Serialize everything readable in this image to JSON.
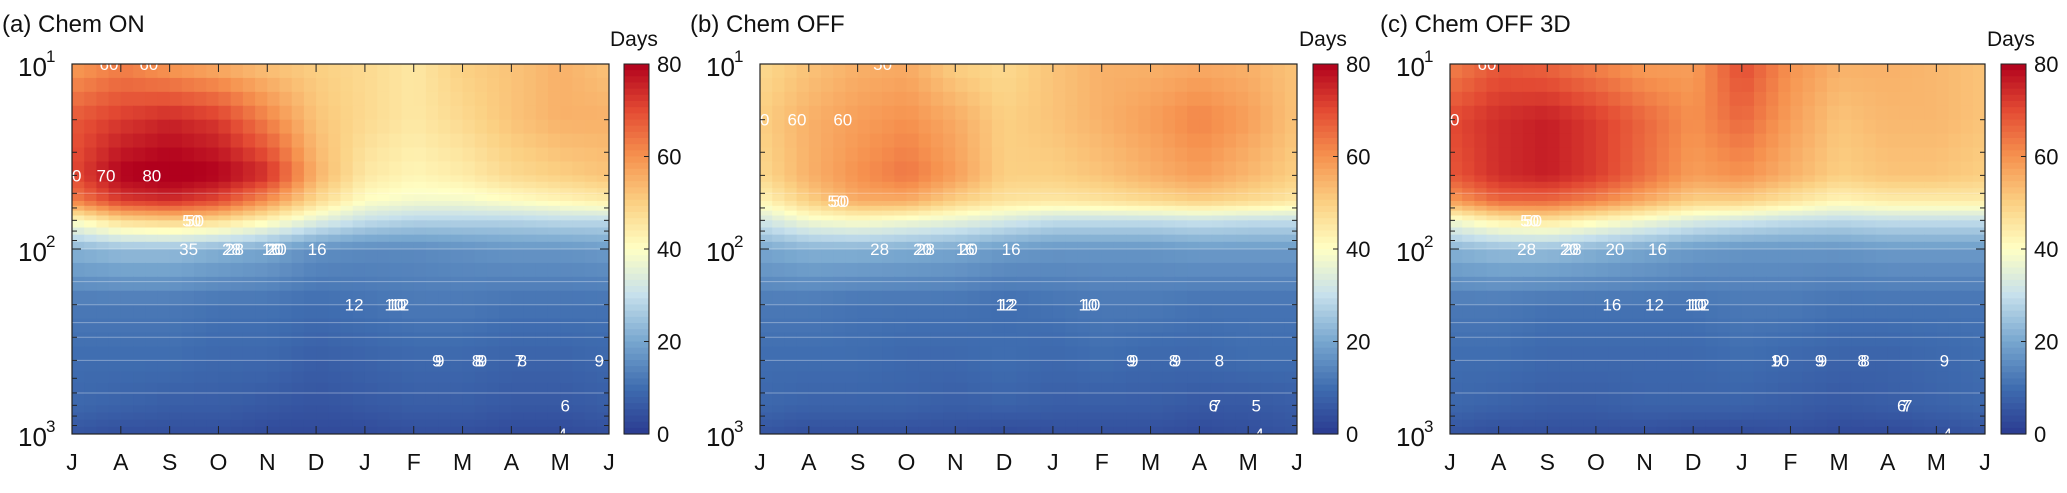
{
  "colorbar": {
    "label": "Days",
    "ticks": [
      "0",
      "20",
      "40",
      "60",
      "80"
    ],
    "min": 0,
    "max": 80,
    "colors": [
      "#2b3b91",
      "#3f6db0",
      "#78a7cf",
      "#c6e0ec",
      "#ffffc4",
      "#fbd083",
      "#f6924f",
      "#e34a33",
      "#b1001d"
    ]
  },
  "chart_data": [
    {
      "type": "heatmap",
      "title": "(a) Chem ON",
      "x_tick_labels": [
        "J",
        "A",
        "S",
        "O",
        "N",
        "D",
        "J",
        "F",
        "M",
        "A",
        "M",
        "J"
      ],
      "y_axis": {
        "scale": "log",
        "range": [
          10,
          1000
        ],
        "ticks": [
          10,
          100,
          1000
        ],
        "labels": [
          "10",
          "10",
          "10"
        ],
        "exponents": [
          "1",
          "2",
          "3"
        ]
      },
      "colorbar_ref": "Days",
      "y_levels": [
        10,
        20,
        40,
        55,
        70,
        100,
        200,
        400,
        700,
        1000
      ],
      "z": [
        [
          58,
          62,
          58,
          55,
          52,
          50,
          48,
          45,
          50,
          52,
          55,
          52
        ],
        [
          68,
          72,
          75,
          72,
          62,
          52,
          48,
          45,
          48,
          52,
          55,
          55
        ],
        [
          70,
          80,
          82,
          80,
          74,
          55,
          45,
          42,
          44,
          48,
          50,
          52
        ],
        [
          62,
          72,
          74,
          70,
          60,
          48,
          40,
          38,
          38,
          40,
          42,
          44
        ],
        [
          40,
          48,
          50,
          48,
          42,
          35,
          30,
          28,
          28,
          28,
          29,
          29
        ],
        [
          22,
          24,
          24,
          22,
          20,
          16,
          15,
          15,
          16,
          17,
          17,
          18
        ],
        [
          12,
          12,
          12,
          11,
          11,
          10,
          11,
          12,
          12,
          11,
          11,
          11
        ],
        [
          10,
          10,
          10,
          9,
          9,
          7,
          8,
          9,
          9,
          8,
          8,
          9
        ],
        [
          9,
          8,
          7,
          7,
          6,
          5,
          6,
          7,
          7,
          6,
          6,
          7
        ],
        [
          5,
          4,
          4,
          4,
          3,
          3,
          3,
          4,
          4,
          3,
          3,
          4
        ]
      ],
      "contour_labels": [
        "70",
        "60",
        "70",
        "80",
        "60",
        "50",
        "50",
        "35",
        "28",
        "28",
        "20",
        "20",
        "16",
        "16",
        "12",
        "12",
        "10",
        "10",
        "9",
        "9",
        "9",
        "8",
        "8",
        "8",
        "7",
        "6",
        "4",
        "9"
      ]
    },
    {
      "type": "heatmap",
      "title": "(b) Chem OFF",
      "x_tick_labels": [
        "J",
        "A",
        "S",
        "O",
        "N",
        "D",
        "J",
        "F",
        "M",
        "A",
        "M",
        "J"
      ],
      "y_axis": {
        "scale": "log",
        "range": [
          10,
          1000
        ],
        "ticks": [
          10,
          100,
          1000
        ],
        "labels": [
          "10",
          "10",
          "10"
        ],
        "exponents": [
          "1",
          "2",
          "3"
        ]
      },
      "colorbar_ref": "Days",
      "y_levels": [
        10,
        20,
        40,
        55,
        70,
        100,
        200,
        400,
        700,
        1000
      ],
      "z": [
        [
          48,
          52,
          55,
          56,
          50,
          48,
          52,
          55,
          55,
          56,
          55,
          52
        ],
        [
          50,
          55,
          58,
          60,
          56,
          50,
          52,
          55,
          58,
          62,
          58,
          52
        ],
        [
          48,
          55,
          60,
          64,
          58,
          50,
          50,
          52,
          55,
          58,
          54,
          50
        ],
        [
          42,
          50,
          56,
          56,
          50,
          46,
          45,
          46,
          48,
          50,
          48,
          45
        ],
        [
          32,
          38,
          40,
          38,
          36,
          33,
          30,
          30,
          30,
          31,
          30,
          30
        ],
        [
          20,
          22,
          22,
          21,
          20,
          18,
          17,
          17,
          17,
          18,
          18,
          18
        ],
        [
          12,
          12,
          11,
          11,
          11,
          10,
          11,
          12,
          12,
          11,
          11,
          11
        ],
        [
          10,
          10,
          10,
          9,
          9,
          10,
          9,
          10,
          9,
          9,
          10,
          10
        ],
        [
          9,
          8,
          8,
          8,
          7,
          8,
          7,
          7,
          7,
          6,
          6,
          7
        ],
        [
          5,
          4,
          4,
          4,
          4,
          3,
          4,
          4,
          4,
          3,
          4,
          5
        ]
      ],
      "contour_labels": [
        "50",
        "60",
        "60",
        "50",
        "50",
        "50",
        "28",
        "28",
        "20",
        "20",
        "16",
        "16",
        "12",
        "12",
        "10",
        "10",
        "9",
        "9",
        "9",
        "8",
        "8",
        "7",
        "6",
        "4",
        "5"
      ]
    },
    {
      "type": "heatmap",
      "title": "(c) Chem OFF 3D",
      "x_tick_labels": [
        "J",
        "A",
        "S",
        "O",
        "N",
        "D",
        "J",
        "F",
        "M",
        "A",
        "M",
        "J"
      ],
      "y_axis": {
        "scale": "log",
        "range": [
          10,
          1000
        ],
        "ticks": [
          10,
          100,
          1000
        ],
        "labels": [
          "10",
          "10",
          "10"
        ],
        "exponents": [
          "1",
          "2",
          "3"
        ]
      },
      "colorbar_ref": "Days",
      "y_levels": [
        10,
        20,
        40,
        55,
        70,
        100,
        200,
        400,
        700,
        1000
      ],
      "z": [
        [
          62,
          68,
          66,
          62,
          58,
          58,
          70,
          60,
          55,
          55,
          54,
          52
        ],
        [
          70,
          74,
          76,
          72,
          66,
          60,
          66,
          58,
          52,
          54,
          54,
          52
        ],
        [
          68,
          74,
          76,
          72,
          65,
          58,
          60,
          55,
          50,
          52,
          52,
          50
        ],
        [
          58,
          66,
          66,
          62,
          56,
          50,
          50,
          46,
          42,
          44,
          44,
          44
        ],
        [
          38,
          44,
          46,
          42,
          38,
          34,
          32,
          30,
          29,
          30,
          30,
          30
        ],
        [
          22,
          24,
          24,
          22,
          20,
          18,
          17,
          17,
          17,
          18,
          18,
          18
        ],
        [
          12,
          12,
          11,
          11,
          11,
          11,
          12,
          12,
          11,
          11,
          11,
          11
        ],
        [
          10,
          10,
          9,
          9,
          9,
          9,
          10,
          9,
          8,
          8,
          9,
          10
        ],
        [
          9,
          8,
          7,
          7,
          8,
          8,
          8,
          7,
          6,
          7,
          8,
          9
        ],
        [
          5,
          4,
          4,
          4,
          4,
          3,
          3,
          4,
          3,
          3,
          4,
          5
        ]
      ],
      "contour_labels": [
        "70",
        "60",
        "50",
        "50",
        "28",
        "28",
        "20",
        "20",
        "16",
        "16",
        "12",
        "12",
        "10",
        "10",
        "10",
        "9",
        "9",
        "9",
        "8",
        "8",
        "7",
        "7",
        "6",
        "4",
        "9"
      ]
    }
  ]
}
